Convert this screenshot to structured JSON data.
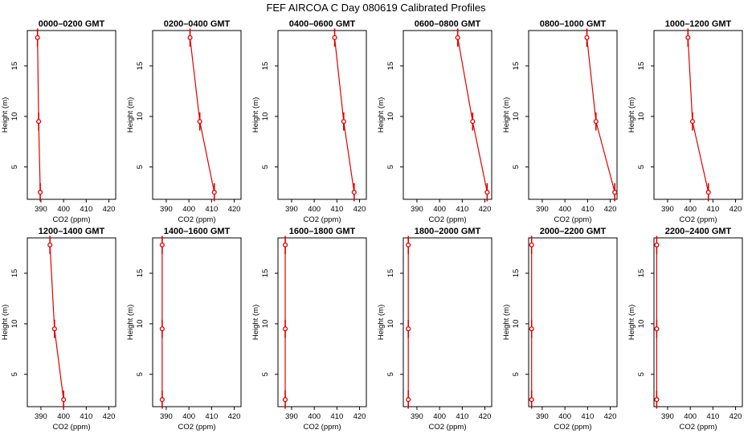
{
  "title": "FEF AIRCOA C  Day 080619  Calibrated Profiles",
  "colors": {
    "profile": "#e00000",
    "frame": "#000000",
    "background": "#ffffff"
  },
  "chart_data": {
    "type": "line",
    "xlabel": "CO2 (ppm)",
    "ylabel": "Height (m)",
    "xlim": [
      384,
      423
    ],
    "ylim": [
      1.8,
      18.5
    ],
    "xticks": [
      390,
      400,
      410,
      420
    ],
    "yticks": [
      5,
      10,
      15
    ],
    "legend": "none",
    "grid": false,
    "panels": [
      {
        "title": "0000–0200 GMT",
        "points": [
          [
            388.5,
            17.8
          ],
          [
            389.0,
            9.5
          ],
          [
            389.7,
            2.5
          ]
        ]
      },
      {
        "title": "0200–0400 GMT",
        "points": [
          [
            400.5,
            17.8
          ],
          [
            404.8,
            9.5
          ],
          [
            411.2,
            2.5
          ]
        ]
      },
      {
        "title": "0400–0600 GMT",
        "points": [
          [
            409.0,
            17.8
          ],
          [
            413.0,
            9.5
          ],
          [
            417.6,
            2.5
          ]
        ]
      },
      {
        "title": "0600–0800 GMT",
        "points": [
          [
            408.0,
            17.8
          ],
          [
            414.6,
            9.5
          ],
          [
            421.0,
            2.5
          ]
        ]
      },
      {
        "title": "0800–1000 GMT",
        "points": [
          [
            409.7,
            17.8
          ],
          [
            413.7,
            9.5
          ],
          [
            422.0,
            2.5
          ]
        ]
      },
      {
        "title": "1000–1200 GMT",
        "points": [
          [
            399.0,
            17.8
          ],
          [
            401.0,
            9.5
          ],
          [
            408.0,
            2.5
          ]
        ]
      },
      {
        "title": "1200–1400 GMT",
        "points": [
          [
            394.0,
            17.8
          ],
          [
            396.0,
            9.5
          ],
          [
            400.0,
            2.5
          ]
        ]
      },
      {
        "title": "1400–1600 GMT",
        "points": [
          [
            388.2,
            17.8
          ],
          [
            388.2,
            9.5
          ],
          [
            388.2,
            2.5
          ]
        ]
      },
      {
        "title": "1600–1800 GMT",
        "points": [
          [
            387.2,
            17.8
          ],
          [
            387.2,
            9.5
          ],
          [
            387.2,
            2.5
          ]
        ]
      },
      {
        "title": "1800–2000 GMT",
        "points": [
          [
            386.2,
            17.8
          ],
          [
            386.2,
            9.5
          ],
          [
            386.2,
            2.5
          ]
        ]
      },
      {
        "title": "2000–2200 GMT",
        "points": [
          [
            385.3,
            17.8
          ],
          [
            385.3,
            9.5
          ],
          [
            385.3,
            2.5
          ]
        ]
      },
      {
        "title": "2200–2400 GMT",
        "points": [
          [
            385.2,
            17.8
          ],
          [
            385.2,
            9.5
          ],
          [
            385.2,
            2.5
          ]
        ]
      }
    ]
  }
}
